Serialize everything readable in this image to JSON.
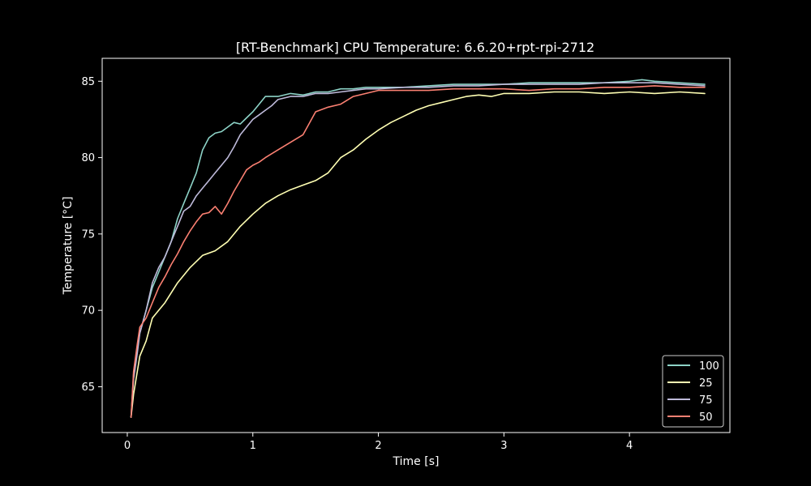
{
  "chart_data": {
    "type": "line",
    "title": "[RT-Benchmark] CPU Temperature: 6.6.20+rpt-rpi-2712",
    "xlabel": "Time [s]",
    "ylabel": "Temperature [°C]",
    "xlim": [
      -0.2,
      4.8
    ],
    "ylim": [
      62,
      86.5
    ],
    "xticks": [
      0,
      1,
      2,
      3,
      4
    ],
    "yticks": [
      65,
      70,
      75,
      80,
      85
    ],
    "grid": false,
    "legend_position": "lower-right",
    "background": "#000000",
    "series": [
      {
        "name": "100",
        "color": "#8dd3c7",
        "x": [
          0.03,
          0.05,
          0.08,
          0.1,
          0.15,
          0.2,
          0.25,
          0.3,
          0.35,
          0.4,
          0.45,
          0.5,
          0.55,
          0.6,
          0.65,
          0.7,
          0.75,
          0.8,
          0.85,
          0.9,
          0.95,
          1.0,
          1.05,
          1.1,
          1.2,
          1.3,
          1.4,
          1.5,
          1.6,
          1.7,
          1.8,
          1.9,
          2.0,
          2.2,
          2.4,
          2.6,
          2.8,
          3.0,
          3.2,
          3.4,
          3.6,
          3.8,
          4.0,
          4.1,
          4.2,
          4.4,
          4.6
        ],
        "y": [
          63.0,
          65.8,
          67.5,
          68.5,
          70.0,
          71.5,
          72.5,
          73.5,
          74.5,
          76.0,
          77.0,
          78.0,
          79.0,
          80.5,
          81.3,
          81.6,
          81.7,
          82.0,
          82.3,
          82.2,
          82.6,
          83.0,
          83.5,
          84.0,
          84.0,
          84.2,
          84.1,
          84.3,
          84.3,
          84.5,
          84.5,
          84.6,
          84.6,
          84.6,
          84.7,
          84.8,
          84.8,
          84.8,
          84.9,
          84.9,
          84.9,
          84.9,
          85.0,
          85.1,
          85.0,
          84.9,
          84.8
        ]
      },
      {
        "name": "25",
        "color": "#ffffb3",
        "x": [
          0.03,
          0.05,
          0.08,
          0.1,
          0.15,
          0.2,
          0.3,
          0.4,
          0.5,
          0.6,
          0.7,
          0.8,
          0.9,
          1.0,
          1.1,
          1.2,
          1.3,
          1.4,
          1.5,
          1.6,
          1.7,
          1.8,
          1.9,
          2.0,
          2.1,
          2.2,
          2.3,
          2.4,
          2.5,
          2.6,
          2.7,
          2.8,
          2.9,
          3.0,
          3.2,
          3.4,
          3.6,
          3.8,
          4.0,
          4.2,
          4.4,
          4.6
        ],
        "y": [
          63.0,
          64.5,
          66.0,
          67.0,
          68.0,
          69.5,
          70.5,
          71.8,
          72.8,
          73.6,
          73.9,
          74.5,
          75.5,
          76.3,
          77.0,
          77.5,
          77.9,
          78.2,
          78.5,
          79.0,
          80.0,
          80.5,
          81.2,
          81.8,
          82.3,
          82.7,
          83.1,
          83.4,
          83.6,
          83.8,
          84.0,
          84.1,
          84.0,
          84.2,
          84.2,
          84.3,
          84.3,
          84.2,
          84.3,
          84.2,
          84.3,
          84.2
        ]
      },
      {
        "name": "75",
        "color": "#bebada",
        "x": [
          0.03,
          0.05,
          0.08,
          0.1,
          0.15,
          0.2,
          0.25,
          0.3,
          0.35,
          0.4,
          0.45,
          0.5,
          0.55,
          0.6,
          0.65,
          0.7,
          0.75,
          0.8,
          0.85,
          0.9,
          0.95,
          1.0,
          1.05,
          1.1,
          1.15,
          1.2,
          1.3,
          1.4,
          1.5,
          1.6,
          1.7,
          1.8,
          1.9,
          2.0,
          2.2,
          2.4,
          2.6,
          2.8,
          3.0,
          3.2,
          3.4,
          3.6,
          3.8,
          4.0,
          4.2,
          4.4,
          4.6
        ],
        "y": [
          63.0,
          65.5,
          67.2,
          68.5,
          70.0,
          71.8,
          72.8,
          73.5,
          74.5,
          75.5,
          76.5,
          76.8,
          77.5,
          78.0,
          78.5,
          79.0,
          79.5,
          80.0,
          80.7,
          81.5,
          82.0,
          82.5,
          82.8,
          83.1,
          83.4,
          83.8,
          84.0,
          84.0,
          84.2,
          84.2,
          84.3,
          84.4,
          84.5,
          84.5,
          84.6,
          84.6,
          84.7,
          84.7,
          84.8,
          84.8,
          84.8,
          84.8,
          84.9,
          84.9,
          84.9,
          84.8,
          84.7
        ]
      },
      {
        "name": "50",
        "color": "#fb8072",
        "x": [
          0.03,
          0.05,
          0.08,
          0.1,
          0.15,
          0.2,
          0.25,
          0.3,
          0.35,
          0.4,
          0.45,
          0.5,
          0.55,
          0.6,
          0.65,
          0.7,
          0.75,
          0.8,
          0.85,
          0.9,
          0.95,
          1.0,
          1.05,
          1.1,
          1.2,
          1.3,
          1.4,
          1.5,
          1.6,
          1.7,
          1.8,
          1.9,
          2.0,
          2.2,
          2.4,
          2.6,
          2.8,
          3.0,
          3.2,
          3.4,
          3.6,
          3.8,
          4.0,
          4.2,
          4.4,
          4.6
        ],
        "y": [
          63.0,
          66.0,
          67.8,
          68.9,
          69.5,
          70.5,
          71.5,
          72.2,
          73.0,
          73.7,
          74.5,
          75.2,
          75.8,
          76.3,
          76.4,
          76.8,
          76.3,
          77.0,
          77.8,
          78.5,
          79.2,
          79.5,
          79.7,
          80.0,
          80.5,
          81.0,
          81.5,
          83.0,
          83.3,
          83.5,
          84.0,
          84.2,
          84.4,
          84.4,
          84.4,
          84.5,
          84.5,
          84.5,
          84.4,
          84.5,
          84.5,
          84.6,
          84.6,
          84.7,
          84.6,
          84.6
        ]
      }
    ]
  }
}
